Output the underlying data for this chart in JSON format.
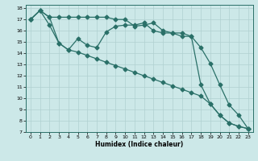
{
  "xlabel": "Humidex (Indice chaleur)",
  "bg_color": "#cce8e8",
  "line_color": "#2a7068",
  "grid_color": "#b0d0d0",
  "xlim": [
    -0.5,
    23.5
  ],
  "ylim": [
    7,
    18.3
  ],
  "yticks": [
    7,
    8,
    9,
    10,
    11,
    12,
    13,
    14,
    15,
    16,
    17,
    18
  ],
  "xticks": [
    0,
    1,
    2,
    3,
    4,
    5,
    6,
    7,
    8,
    9,
    10,
    11,
    12,
    13,
    14,
    15,
    16,
    17,
    18,
    19,
    20,
    21,
    22,
    23
  ],
  "line1_x": [
    0,
    1,
    2,
    3,
    4,
    5,
    6,
    7,
    8,
    9,
    10,
    11,
    12,
    13,
    14,
    15,
    16,
    17,
    18,
    19,
    20,
    21,
    22,
    23
  ],
  "line1_y": [
    17.0,
    17.8,
    17.2,
    17.2,
    17.2,
    17.2,
    17.2,
    17.2,
    17.2,
    17.0,
    17.0,
    16.4,
    16.5,
    16.7,
    16.0,
    15.8,
    15.8,
    15.5,
    14.5,
    13.1,
    11.2,
    9.4,
    8.5,
    7.3
  ],
  "line2_x": [
    0,
    1,
    2,
    3,
    4,
    5,
    6,
    7,
    8,
    9,
    10,
    11,
    12,
    13,
    14,
    15,
    16,
    17,
    18,
    19,
    20,
    21,
    22,
    23
  ],
  "line2_y": [
    17.0,
    17.8,
    17.2,
    14.9,
    14.3,
    15.3,
    14.7,
    14.5,
    15.9,
    16.4,
    16.5,
    16.5,
    16.7,
    16.0,
    15.8,
    15.8,
    15.5,
    15.5,
    11.2,
    9.5,
    8.5,
    7.8,
    7.5,
    7.3
  ],
  "line3_x": [
    0,
    1,
    2,
    3,
    4,
    5,
    6,
    7,
    8,
    9,
    10,
    11,
    12,
    13,
    14,
    15,
    16,
    17,
    18,
    19,
    20,
    21,
    22,
    23
  ],
  "line3_y": [
    17.0,
    17.8,
    16.5,
    14.9,
    14.3,
    14.1,
    13.8,
    13.5,
    13.2,
    12.9,
    12.6,
    12.3,
    12.0,
    11.7,
    11.4,
    11.1,
    10.8,
    10.5,
    10.2,
    9.5,
    8.5,
    7.8,
    7.5,
    7.3
  ],
  "marker_size": 2.5,
  "linewidth": 0.9
}
